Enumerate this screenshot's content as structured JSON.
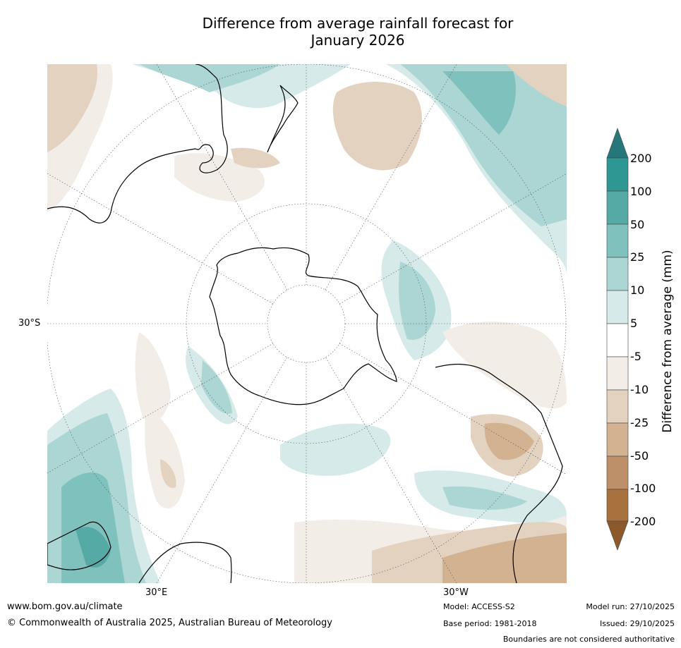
{
  "title_line1": "Difference from average rainfall forecast for",
  "title_line2": "January 2026",
  "map": {
    "lat_label": "30°S",
    "lon_label_left": "30°E",
    "lon_label_right": "30°W",
    "colors": {
      "land_outline": "#000000",
      "grid": "#555555",
      "wet": [
        "#d6ebe9",
        "#abd6d3",
        "#7fc1bd",
        "#56aaa6",
        "#2f9793",
        "#26777a"
      ],
      "dry": [
        "#f2ede7",
        "#e4d2c0",
        "#d2b291",
        "#be9069",
        "#a8723e",
        "#8c5a2a"
      ]
    }
  },
  "colorbar": {
    "title": "Difference from average (mm)",
    "labels": [
      "200",
      "100",
      "50",
      "25",
      "10",
      "5",
      "-5",
      "-10",
      "-25",
      "-50",
      "-100",
      "-200"
    ]
  },
  "footer": {
    "url": "www.bom.gov.au/climate",
    "copyright": "© Commonwealth of Australia 2025, Australian Bureau of Meteorology",
    "model": "Model: ACCESS-S2",
    "base_period": "Base period: 1981-2018",
    "model_run": "Model run: 27/10/2025",
    "issued": "Issued: 29/10/2025",
    "disclaimer": "Boundaries are not considered authoritative"
  }
}
